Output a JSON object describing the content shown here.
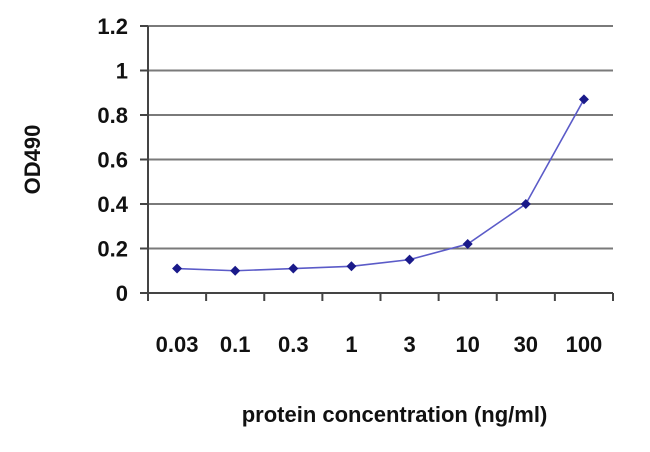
{
  "chart_data": {
    "type": "line",
    "title": "",
    "xlabel": "protein concentration (ng/ml)",
    "ylabel": "OD490",
    "categories": [
      "0.03",
      "0.1",
      "0.3",
      "1",
      "3",
      "10",
      "30",
      "100"
    ],
    "x_tick_labels": [
      "0.03",
      "0.1",
      "0.3",
      "1",
      "3",
      "10",
      "30",
      "100"
    ],
    "y_tick_labels": [
      "0",
      "0.2",
      "0.4",
      "0.6",
      "0.8",
      "1",
      "1.2"
    ],
    "ylim": [
      0,
      1.2
    ],
    "y_ticks": [
      0,
      0.2,
      0.4,
      0.6,
      0.8,
      1,
      1.2
    ],
    "grid": true,
    "legend": "none",
    "series": [
      {
        "values": [
          0.11,
          0.1,
          0.11,
          0.12,
          0.15,
          0.22,
          0.4,
          0.87
        ]
      }
    ],
    "colors": {
      "line": "#5b5bc8",
      "marker": "#1a1a8a",
      "grid": "#7a7a7a",
      "axis": "#444444"
    }
  }
}
